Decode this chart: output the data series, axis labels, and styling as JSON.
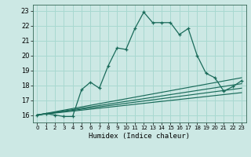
{
  "xlabel": "Humidex (Indice chaleur)",
  "bg_color": "#cce8e4",
  "grid_color": "#a8d8d0",
  "line_color": "#1a6b5a",
  "xlim": [
    -0.5,
    23.5
  ],
  "ylim": [
    15.5,
    23.4
  ],
  "yticks": [
    16,
    17,
    18,
    19,
    20,
    21,
    22,
    23
  ],
  "xticks": [
    0,
    1,
    2,
    3,
    4,
    5,
    6,
    7,
    8,
    9,
    10,
    11,
    12,
    13,
    14,
    15,
    16,
    17,
    18,
    19,
    20,
    21,
    22,
    23
  ],
  "main_x": [
    0,
    1,
    2,
    3,
    4,
    5,
    6,
    7,
    8,
    9,
    10,
    11,
    12,
    13,
    14,
    15,
    16,
    17,
    18,
    19,
    20,
    21,
    22,
    23
  ],
  "main_y": [
    16.0,
    16.1,
    16.0,
    15.9,
    15.9,
    17.7,
    18.2,
    17.8,
    19.3,
    20.5,
    20.4,
    21.8,
    22.9,
    22.2,
    22.2,
    22.2,
    21.4,
    21.8,
    20.0,
    18.8,
    18.5,
    17.6,
    17.9,
    18.3
  ],
  "ref_lines": [
    {
      "x": [
        0,
        23
      ],
      "y": [
        16.0,
        17.5
      ]
    },
    {
      "x": [
        0,
        23
      ],
      "y": [
        16.0,
        17.8
      ]
    },
    {
      "x": [
        0,
        23
      ],
      "y": [
        16.0,
        18.1
      ]
    },
    {
      "x": [
        0,
        23
      ],
      "y": [
        16.0,
        18.5
      ]
    }
  ]
}
